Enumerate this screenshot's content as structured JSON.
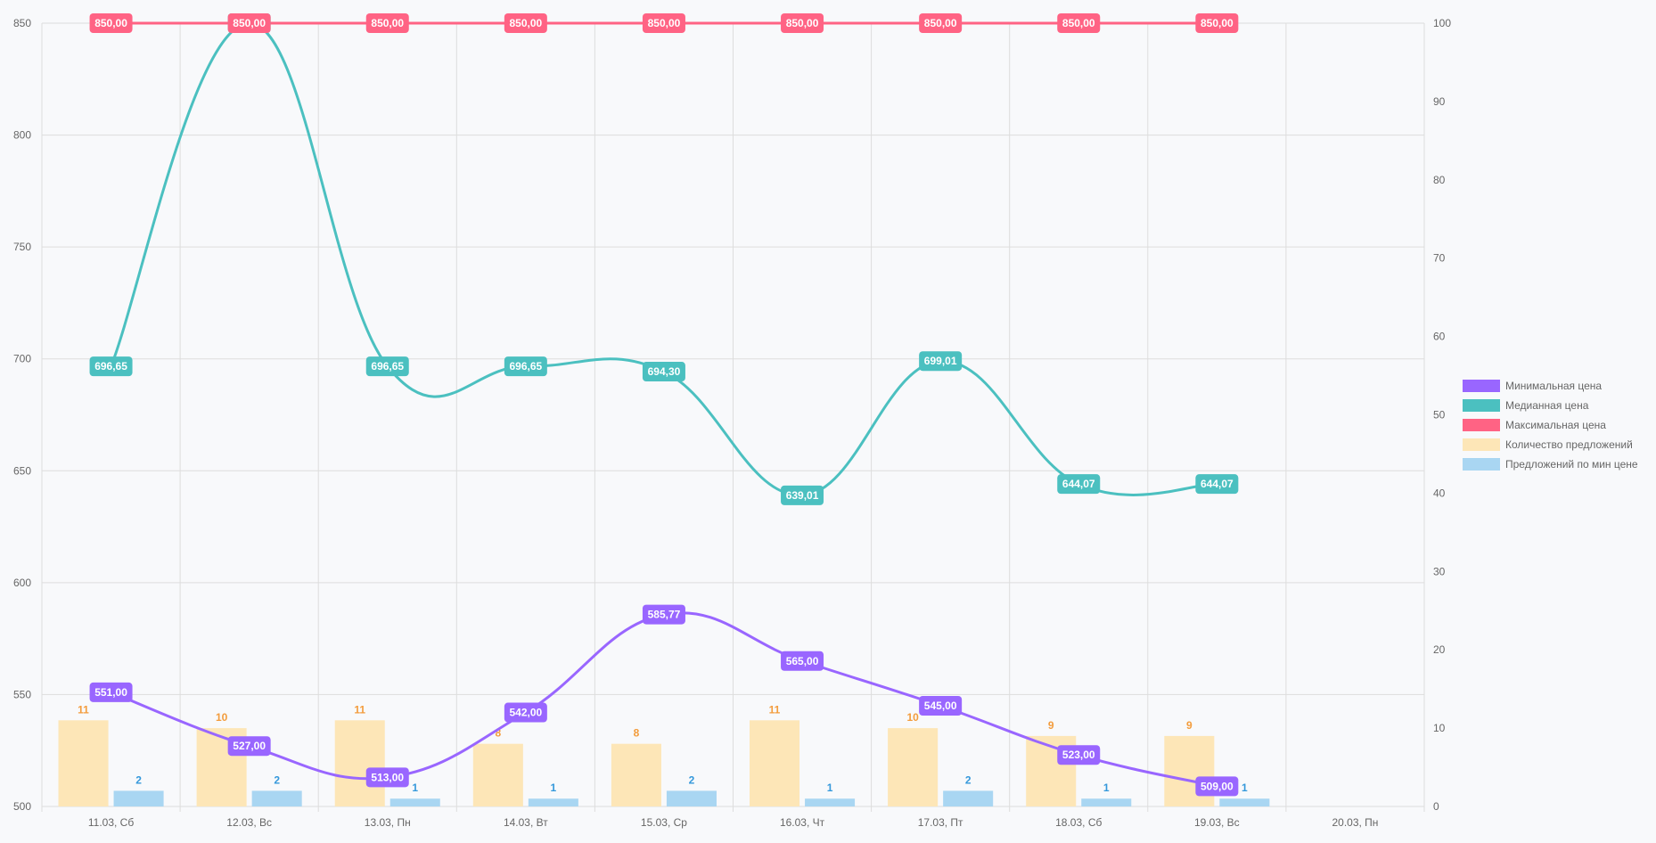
{
  "chart_data": {
    "type": "line",
    "categories": [
      "11.03, Сб",
      "12.03, Вс",
      "13.03, Пн",
      "14.03, Вт",
      "15.03, Ср",
      "16.03, Чт",
      "17.03, Пт",
      "18.03, Сб",
      "19.03, Вс",
      "20.03, Пн"
    ],
    "y_left": {
      "min": 500,
      "max": 850,
      "step": 50,
      "ticks": [
        "500",
        "550",
        "600",
        "650",
        "700",
        "750",
        "800",
        "850"
      ]
    },
    "y_right": {
      "min": 0,
      "max": 100,
      "step": 10,
      "ticks": [
        "0",
        "10",
        "20",
        "30",
        "40",
        "50",
        "60",
        "70",
        "80",
        "90",
        "100"
      ]
    },
    "grid": true,
    "legend_position": "right",
    "series": [
      {
        "name": "Минимальная цена",
        "kind": "line",
        "axis": "left",
        "color": "#9966ff",
        "values": [
          551.0,
          527.0,
          513.0,
          542.0,
          585.77,
          565.0,
          545.0,
          523.0,
          509.0,
          null
        ],
        "labels": [
          "551,00",
          "527,00",
          "513,00",
          "542,00",
          "585,77",
          "565,00",
          "545,00",
          "523,00",
          "509,00",
          ""
        ]
      },
      {
        "name": "Медианная цена",
        "kind": "line",
        "axis": "left",
        "color": "#4bc0c0",
        "values": [
          696.65,
          850.0,
          696.65,
          696.65,
          694.3,
          639.01,
          699.01,
          644.07,
          644.07,
          null
        ],
        "labels": [
          "696,65",
          "850,00",
          "696,65",
          "696,65",
          "694,30",
          "639,01",
          "699,01",
          "644,07",
          "644,07",
          ""
        ]
      },
      {
        "name": "Максимальная цена",
        "kind": "line",
        "axis": "left",
        "color": "#ff6384",
        "values": [
          850.0,
          850.0,
          850.0,
          850.0,
          850.0,
          850.0,
          850.0,
          850.0,
          850.0,
          null
        ],
        "labels": [
          "850,00",
          "850,00",
          "850,00",
          "850,00",
          "850,00",
          "850,00",
          "850,00",
          "850,00",
          "850,00",
          ""
        ]
      },
      {
        "name": "Количество предложений",
        "kind": "bar",
        "axis": "right",
        "color": "#fde6b7",
        "label_color": "#f39c3c",
        "values": [
          11,
          10,
          11,
          8,
          8,
          11,
          10,
          9,
          9,
          null
        ],
        "labels": [
          "11",
          "10",
          "11",
          "8",
          "8",
          "11",
          "10",
          "9",
          "9",
          ""
        ]
      },
      {
        "name": "Предложений по мин цене",
        "kind": "bar",
        "axis": "right",
        "color": "#a9d6f2",
        "label_color": "#3498db",
        "values": [
          2,
          2,
          1,
          1,
          2,
          1,
          2,
          1,
          1,
          null
        ],
        "labels": [
          "2",
          "2",
          "1",
          "1",
          "2",
          "1",
          "2",
          "1",
          "1",
          ""
        ]
      }
    ]
  }
}
